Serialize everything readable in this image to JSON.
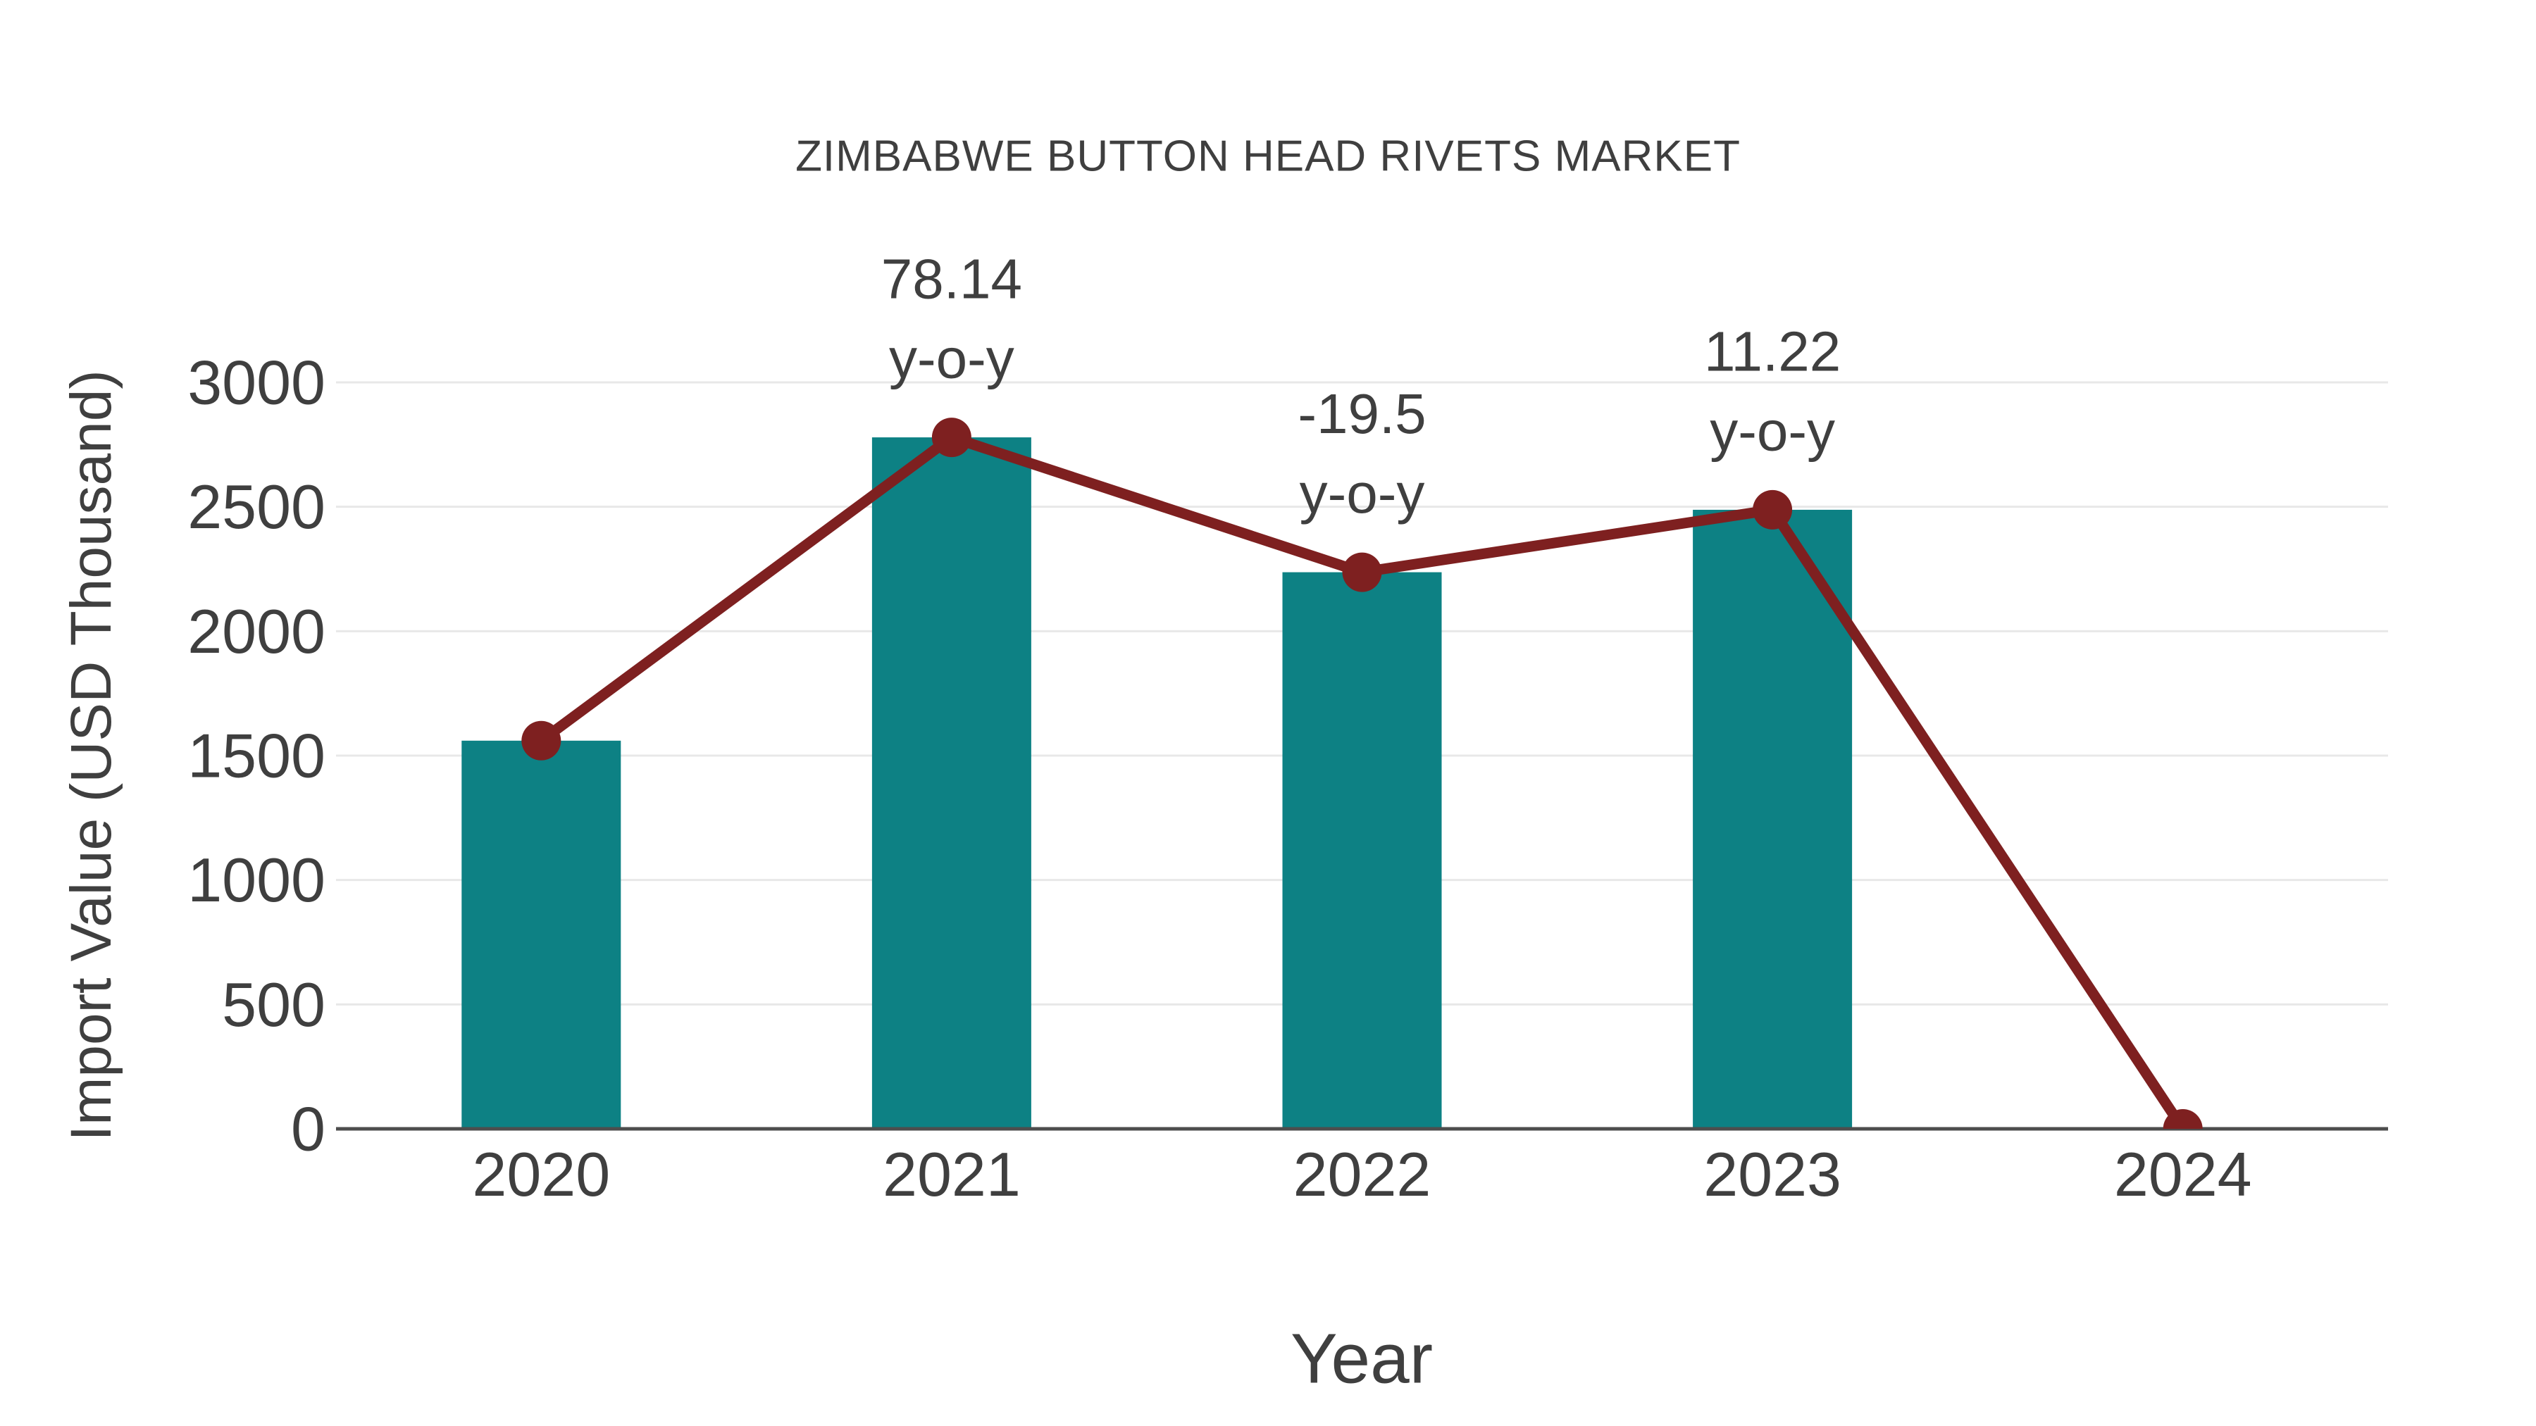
{
  "chart_data": {
    "type": "bar",
    "subtype": "bar-with-line-overlay",
    "title": "ZIMBABWE BUTTON HEAD RIVETS MARKET",
    "xlabel": "Year",
    "ylabel": "Import Value (USD Thousand)",
    "categories": [
      "2020",
      "2021",
      "2022",
      "2023",
      "2024"
    ],
    "series": [
      {
        "name": "Import Value bars",
        "type": "bar",
        "color": "#0d8184",
        "values": [
          1560,
          2779,
          2237,
          2488,
          0
        ]
      },
      {
        "name": "Import Value trend line",
        "type": "line",
        "color": "#7e2020",
        "values": [
          1560,
          2779,
          2237,
          2488,
          0
        ]
      }
    ],
    "annotations": [
      {
        "category": "2021",
        "value_label": "78.14",
        "suffix_label": "y-o-y"
      },
      {
        "category": "2022",
        "value_label": "-19.5",
        "suffix_label": "y-o-y"
      },
      {
        "category": "2023",
        "value_label": "11.22",
        "suffix_label": "y-o-y"
      }
    ],
    "ylim": [
      0,
      3000
    ],
    "yticks": [
      0,
      500,
      1000,
      1500,
      2000,
      2500,
      3000
    ],
    "grid": true,
    "legend_position": "none",
    "colors": {
      "bar": "#0d8184",
      "line": "#7e2020",
      "marker": "#7e2020",
      "text": "#3f3f3f",
      "grid": "#e8e8e8",
      "axis": "#4d4d4d",
      "background": "#ffffff"
    }
  }
}
